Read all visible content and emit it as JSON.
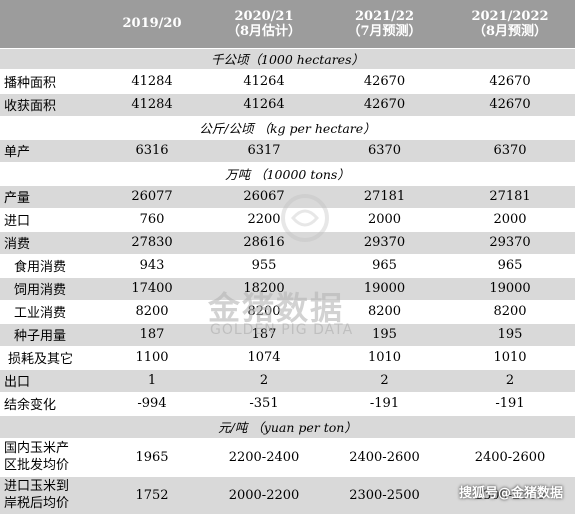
{
  "columns": [
    "",
    "2019/20",
    "2020/21\n（8月估计）",
    "2021/22\n（7月预测）",
    "2021/2022\n（8月预测）"
  ],
  "col_lines": [
    [
      "",
      ""
    ],
    [
      "2019/20",
      ""
    ],
    [
      "2020/21",
      "（8月估计）"
    ],
    [
      "2021/22",
      "（7月预测）"
    ],
    [
      "2021/2022",
      "（8月预测）"
    ]
  ],
  "sections": {
    "area": "千公顷（1000 hectares）",
    "yield": "公斤/公顷 （kg per hectare）",
    "tons": "万吨 （10000 tons）",
    "price": "元/吨 （yuan per ton）"
  },
  "rows": {
    "sown": [
      "播种面积",
      "41284",
      "41264",
      "42670",
      "42670"
    ],
    "harvested": [
      "收获面积",
      "41284",
      "41264",
      "42670",
      "42670"
    ],
    "yield": [
      "单产",
      "6316",
      "6317",
      "6370",
      "6370"
    ],
    "production": [
      "产量",
      "26077",
      "26067",
      "27181",
      "27181"
    ],
    "imports": [
      "进口",
      "760",
      "2200",
      "2000",
      "2000"
    ],
    "consumption": [
      "消费",
      "27830",
      "28616",
      "29370",
      "29370"
    ],
    "food": [
      "食用消费",
      "943",
      "955",
      "965",
      "965"
    ],
    "feed": [
      "饲用消费",
      "17400",
      "18200",
      "19000",
      "19000"
    ],
    "industrial": [
      "工业消费",
      "8200",
      "8200",
      "8200",
      "8200"
    ],
    "seed": [
      "种子用量",
      "187",
      "187",
      "195",
      "195"
    ],
    "loss": [
      "损耗及其它",
      "1100",
      "1074",
      "1010",
      "1010"
    ],
    "exports": [
      "出口",
      "1",
      "2",
      "2",
      "2"
    ],
    "balance": [
      "结余变化",
      "-994",
      "-351",
      "-191",
      "-191"
    ],
    "domestic_price": [
      "国内玉米产区批发均价",
      "1965",
      "2200-2400",
      "2400-2600",
      "2400-2600"
    ],
    "import_price": [
      "进口玉米到岸税后均价",
      "1752",
      "2000-2200",
      "2300-2500",
      "2300-2500"
    ]
  },
  "label_lines": {
    "domestic_price": [
      "国内玉米产",
      "区批发均价"
    ],
    "import_price": [
      "进口玉米到",
      "岸税后均价"
    ]
  },
  "watermark": {
    "logo": "金猪数据",
    "sub": "GOLDEN PIG DATA"
  },
  "corner_mark": "搜狐号@金猪数据"
}
